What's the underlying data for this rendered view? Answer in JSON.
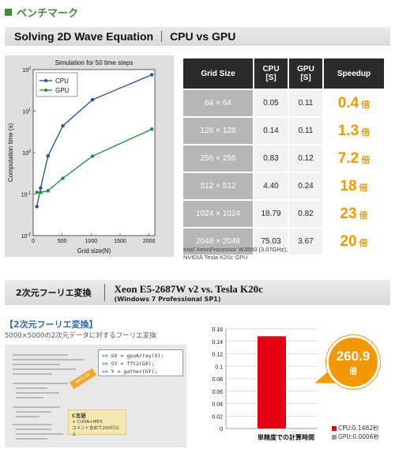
{
  "header": {
    "title": "ベンチマーク",
    "accent": "#3f8d2e"
  },
  "section1": {
    "title_left": "Solving 2D Wave Equation",
    "title_right": "CPU vs GPU"
  },
  "line_chart": {
    "chart_data": {
      "type": "line",
      "title": "Simulation for 50 time steps",
      "xlabel": "Grid size(N)",
      "ylabel": "Computation time (s)",
      "x_ticks": [
        "0",
        "500",
        "1000",
        "1500",
        "2000"
      ],
      "y_ticks": [
        "10^-2",
        "10^-1",
        "10^0",
        "10^1",
        "10^2"
      ],
      "xlim": [
        0,
        2100
      ],
      "ylim_log10": [
        -2,
        2
      ],
      "yscale": "log",
      "legend_position": "top-left",
      "series": [
        {
          "name": "CPU",
          "color": "#1f4fa8",
          "x": [
            64,
            128,
            256,
            512,
            1024,
            2048
          ],
          "y": [
            0.05,
            0.14,
            0.83,
            4.4,
            18.79,
            75.03
          ]
        },
        {
          "name": "GPU",
          "color": "#1e8f3a",
          "x": [
            64,
            128,
            256,
            512,
            1024,
            2048
          ],
          "y": [
            0.11,
            0.11,
            0.12,
            0.24,
            0.82,
            3.67
          ]
        }
      ]
    }
  },
  "bench_table": {
    "headers": [
      "Grid Size",
      "CPU\n[S]",
      "GPU\n[S]",
      "Speedup"
    ],
    "rows": [
      {
        "grid": "64 × 64",
        "cpu": "0.05",
        "gpu": "0.11",
        "speedup": "0.4",
        "unit": "倍"
      },
      {
        "grid": "128 × 128",
        "cpu": "0.14",
        "gpu": "0.11",
        "speedup": "1.3",
        "unit": "倍"
      },
      {
        "grid": "256 × 256",
        "cpu": "0.83",
        "gpu": "0.12",
        "speedup": "7.2",
        "unit": "倍"
      },
      {
        "grid": "512 × 512",
        "cpu": "4.40",
        "gpu": "0.24",
        "speedup": "18",
        "unit": "倍"
      },
      {
        "grid": "1024 × 1024",
        "cpu": "18.79",
        "gpu": "0.82",
        "speedup": "23",
        "unit": "倍"
      },
      {
        "grid": "2048 × 2048",
        "cpu": "75.03",
        "gpu": "3.67",
        "speedup": "20",
        "unit": "倍"
      }
    ],
    "note_line1": "Intel XeonProcessor W3550 (3.07GHz),",
    "note_line2": "NVIDIA Tesla K20c GPU"
  },
  "section2": {
    "title_left": "2次元フーリエ変換",
    "title_right": "Xeon E5-2687W v2 vs. Tesla K20c",
    "subtitle_right": "(Windows 7 Professional SP1)"
  },
  "fft": {
    "heading": "【2次元フーリエ変換】",
    "description": "5000×5000の2次元データに対するフーリエ変換",
    "code": [
      {
        "prompt": ">>",
        "text": "GX = gpuArray(X);"
      },
      {
        "prompt": ">>",
        "text": "GY = fft2(GX);"
      },
      {
        "prompt": ">>",
        "text": "Y = gather(GY);"
      }
    ],
    "c_box": [
      "C言語",
      "+ CUDA+MEX",
      "コメント含めて200行以上"
    ]
  },
  "bar_chart": {
    "chart_data": {
      "type": "bar",
      "categories": [
        "単精度での計算時間"
      ],
      "series": [
        {
          "name": "CPU:0.1482秒",
          "values": [
            0.1482
          ],
          "color": "#e60012"
        },
        {
          "name": "GPU:0.0006秒",
          "values": [
            0.0006
          ],
          "color": "#9a9a9a"
        }
      ],
      "y_ticks": [
        "0",
        "0.02",
        "0.04",
        "0.06",
        "0.08",
        "0.1",
        "0.12",
        "0.14",
        "0.16"
      ],
      "ylim": [
        0,
        0.16
      ],
      "legend_position": "bottom-right",
      "xlabel": "単精度での計算時間"
    },
    "badge_value": "260.9",
    "badge_unit": "倍"
  },
  "colors": {
    "orange": "#f39800",
    "red": "#e60012",
    "gray": "#9a9a9a"
  }
}
